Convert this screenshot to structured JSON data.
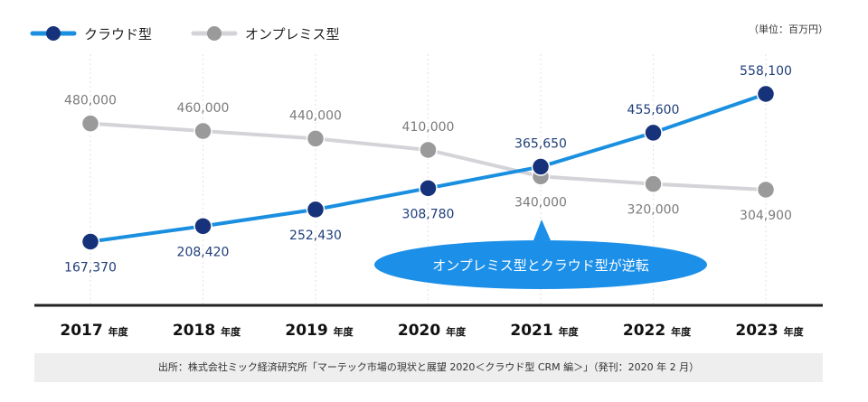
{
  "unit_label": "（単位：百万円）",
  "source_note": "出所：株式会社ミック経済研究所「マーテック市場の現状と展望 2020＜クラウド型 CRM 編＞」（発刊：2020 年 2 月）",
  "callout": "オンプレミス型とクラウド型が逆転",
  "year_suffix": "年度",
  "colors": {
    "cloud_line": "#1a8fe0",
    "cloud_point": "#16327a",
    "onprem_line": "#d4d4d8",
    "onprem_point": "#9a9a9a",
    "callout": "#1c8fe8"
  },
  "chart_data": {
    "type": "line",
    "categories": [
      "2017",
      "2018",
      "2019",
      "2020",
      "2021",
      "2022",
      "2023"
    ],
    "ylim": [
      0,
      600000
    ],
    "series": [
      {
        "key": "cloud",
        "name": "クラウド型",
        "values": [
          167370,
          208420,
          252430,
          308780,
          365650,
          455600,
          558100
        ],
        "labels": [
          "167,370",
          "208,420",
          "252,430",
          "308,780",
          "365,650",
          "455,600",
          "558,100"
        ]
      },
      {
        "key": "onprem",
        "name": "オンプレミス型",
        "values": [
          480000,
          460000,
          440000,
          410000,
          340000,
          320000,
          304900
        ],
        "labels": [
          "480,000",
          "460,000",
          "440,000",
          "410,000",
          "340,000",
          "320,000",
          "304,900"
        ]
      }
    ]
  }
}
